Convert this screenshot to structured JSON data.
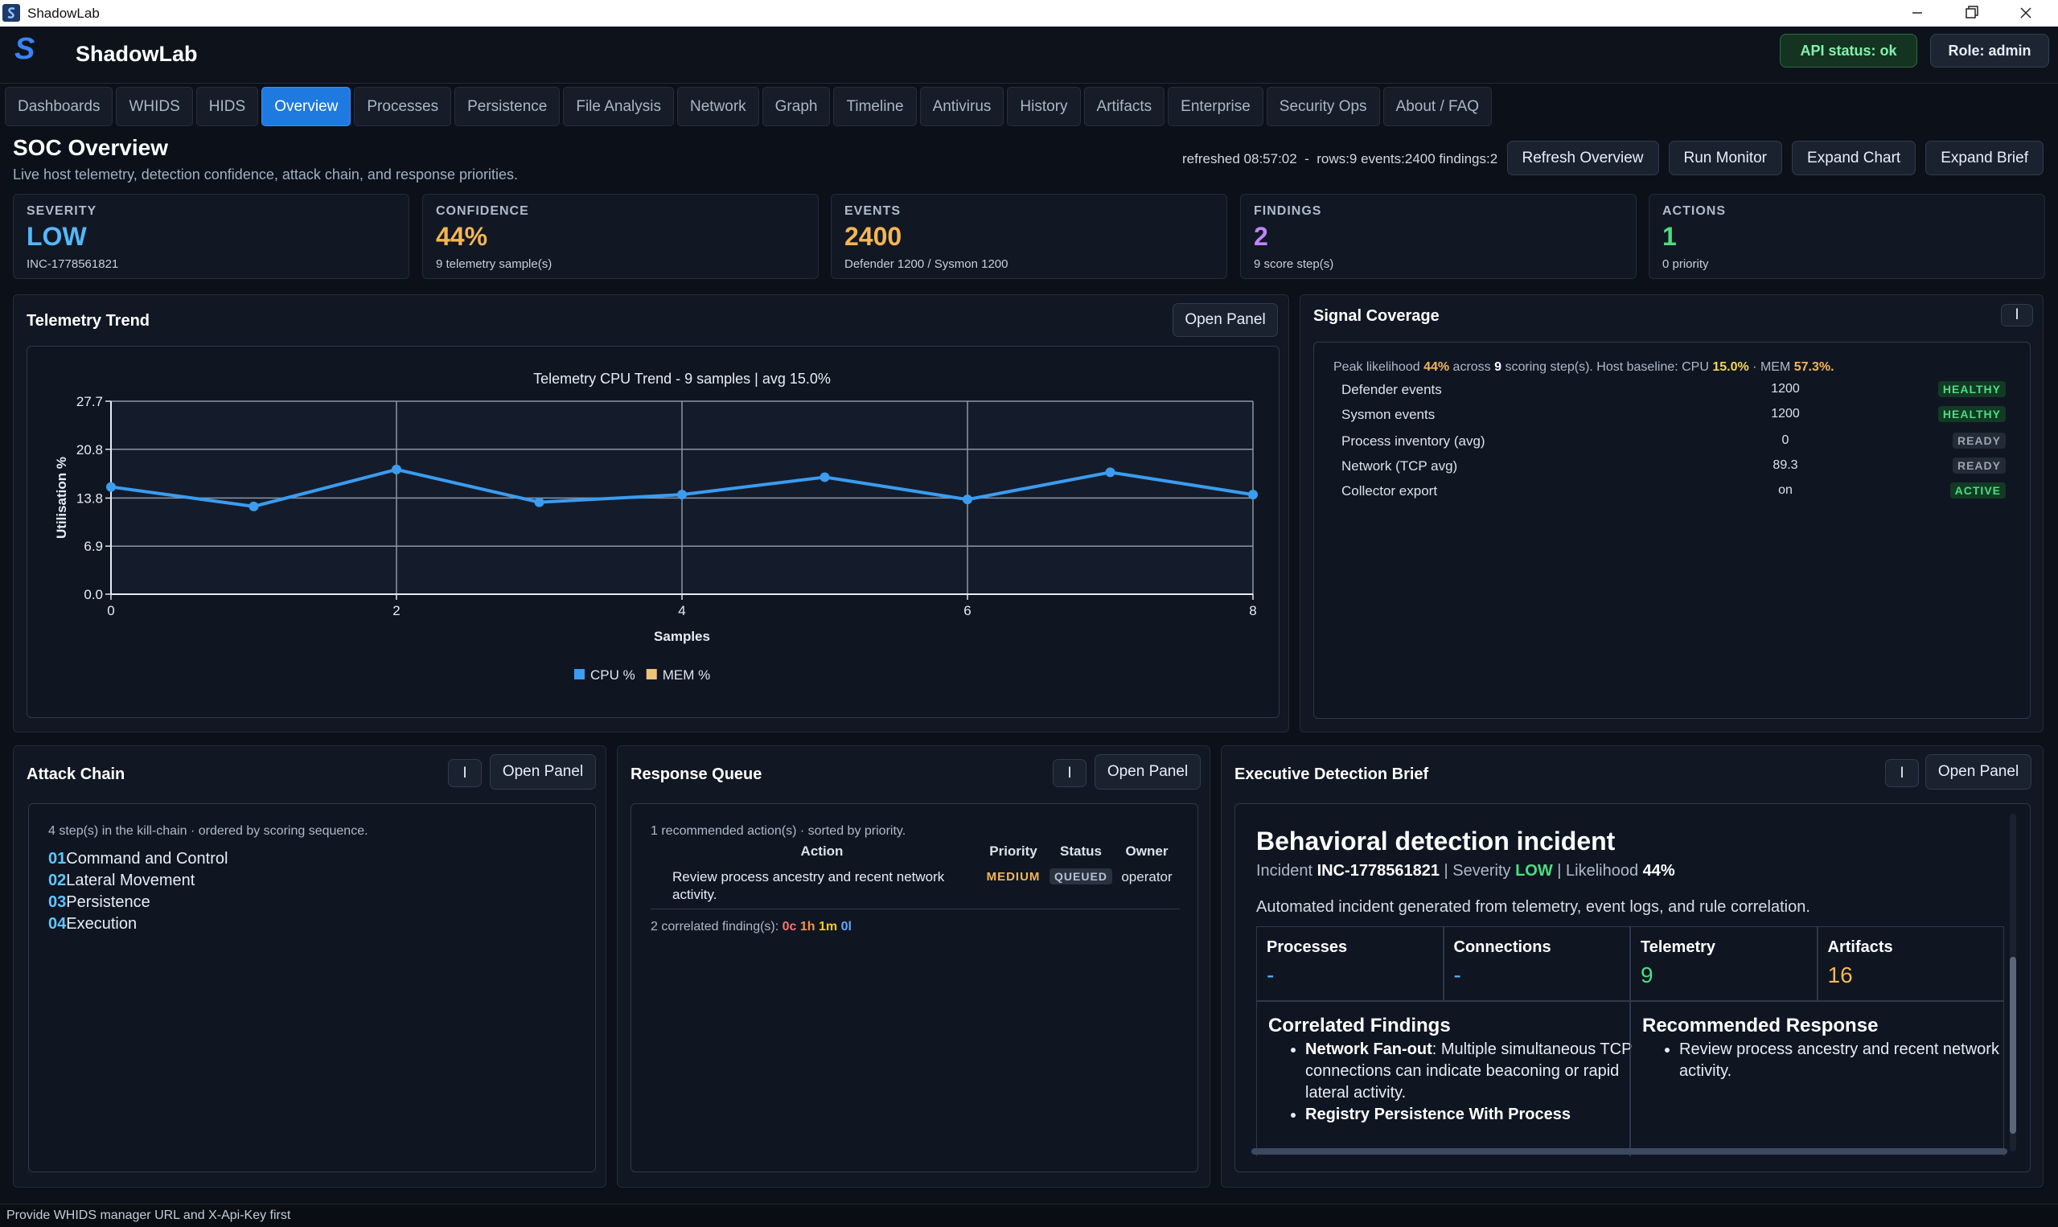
{
  "window": {
    "title": "ShadowLab"
  },
  "header": {
    "logo": "S",
    "app_name": "ShadowLab",
    "api_status": "API status: ok",
    "role": "Role: admin"
  },
  "tabs": [
    {
      "label": "Dashboards"
    },
    {
      "label": "WHIDS"
    },
    {
      "label": "HIDS"
    },
    {
      "label": "Overview",
      "active": true
    },
    {
      "label": "Processes"
    },
    {
      "label": "Persistence"
    },
    {
      "label": "File Analysis"
    },
    {
      "label": "Network"
    },
    {
      "label": "Graph"
    },
    {
      "label": "Timeline"
    },
    {
      "label": "Antivirus"
    },
    {
      "label": "History"
    },
    {
      "label": "Artifacts"
    },
    {
      "label": "Enterprise"
    },
    {
      "label": "Security Ops"
    },
    {
      "label": "About / FAQ"
    }
  ],
  "page": {
    "title": "SOC Overview",
    "subtitle": "Live host telemetry, detection confidence, attack chain, and response priorities.",
    "status_line": "refreshed 08:57:02  -  rows:9 events:2400 findings:2",
    "buttons": [
      "Refresh Overview",
      "Run Monitor",
      "Expand Chart",
      "Expand Brief"
    ]
  },
  "kpis": [
    {
      "label": "SEVERITY",
      "value": "LOW",
      "sub": "INC-1778561821",
      "color": "#55b8ff"
    },
    {
      "label": "CONFIDENCE",
      "value": "44%",
      "sub": "9 telemetry sample(s)",
      "color": "#f5b553"
    },
    {
      "label": "EVENTS",
      "value": "2400",
      "sub": "Defender 1200 / Sysmon 1200",
      "color": "#f5b553"
    },
    {
      "label": "FINDINGS",
      "value": "2",
      "sub": "9 score step(s)",
      "color": "#c084fc"
    },
    {
      "label": "ACTIONS",
      "value": "1",
      "sub": "0 priority",
      "color": "#4ade80"
    }
  ],
  "telemetry_panel": {
    "title": "Telemetry Trend",
    "button": "Open Panel"
  },
  "chart_data": {
    "type": "line",
    "title": "Telemetry CPU Trend - 9 samples | avg 15.0%",
    "x_label": "Samples",
    "y_label": "Utilisation %",
    "x": [
      0,
      1,
      2,
      3,
      4,
      5,
      6,
      7,
      8
    ],
    "series": [
      {
        "name": "CPU %",
        "color": "#3b9cf0",
        "values": [
          15.4,
          12.6,
          17.9,
          13.2,
          14.3,
          16.8,
          13.6,
          17.5,
          14.3
        ]
      },
      {
        "name": "MEM %",
        "color": "#f0c27a",
        "values": [
          null,
          null,
          null,
          null,
          null,
          null,
          null,
          null,
          null
        ]
      }
    ],
    "xlim": [
      0,
      8
    ],
    "xticks": [
      0,
      2,
      4,
      6,
      8
    ],
    "ylim": [
      0,
      27.7
    ],
    "yticks": [
      {
        "value": 0,
        "label": "0.0"
      },
      {
        "value": 6.9,
        "label": "6.9"
      },
      {
        "value": 13.8,
        "label": "13.8"
      },
      {
        "value": 20.8,
        "label": "20.8"
      },
      27.7
    ],
    "grid": true,
    "legend": "bottom"
  },
  "signal_coverage": {
    "title": "Signal Coverage",
    "icon_button": "I",
    "summary": [
      {
        "text": "Peak likelihood "
      },
      {
        "text": "44%",
        "color": "#f5b553"
      },
      {
        "text": " across "
      },
      {
        "text": "9",
        "color": "#ffffff"
      },
      {
        "text": " scoring step(s). Host baseline: CPU "
      },
      {
        "text": "15.0%",
        "color": "#f5d553"
      },
      {
        "text": " · MEM "
      },
      {
        "text": "57.3%.",
        "color": "#f5b553"
      }
    ],
    "rows": [
      {
        "name": "Defender events",
        "value": "1200",
        "status": "HEALTHY",
        "tone": "ok"
      },
      {
        "name": "Sysmon events",
        "value": "1200",
        "status": "HEALTHY",
        "tone": "ok"
      },
      {
        "name": "Process inventory (avg)",
        "value": "0",
        "status": "READY",
        "tone": "neutral"
      },
      {
        "name": "Network (TCP avg)",
        "value": "89.3",
        "status": "READY",
        "tone": "neutral"
      },
      {
        "name": "Collector export",
        "value": "on",
        "status": "ACTIVE",
        "tone": "ok"
      }
    ]
  },
  "attack_chain": {
    "title": "Attack Chain",
    "icon_button": "I",
    "button": "Open Panel",
    "summary": "4 step(s) in the kill-chain · ordered by scoring sequence.",
    "steps": [
      {
        "num": "01",
        "name": "Command and Control"
      },
      {
        "num": "02",
        "name": "Lateral Movement"
      },
      {
        "num": "03",
        "name": "Persistence"
      },
      {
        "num": "04",
        "name": "Execution"
      }
    ]
  },
  "response_queue": {
    "title": "Response Queue",
    "icon_button": "I",
    "button": "Open Panel",
    "summary": "1 recommended action(s) · sorted by priority.",
    "columns": [
      "Action",
      "Priority",
      "Status",
      "Owner"
    ],
    "rows": [
      [
        "Review process ancestry and recent network activity.",
        "MEDIUM",
        "QUEUED",
        "operator"
      ]
    ],
    "footer": [
      {
        "text": "2 correlated finding(s): "
      },
      {
        "text": "0c",
        "color": "#f87171"
      },
      {
        "text": " "
      },
      {
        "text": "1h",
        "color": "#fb923c"
      },
      {
        "text": " "
      },
      {
        "text": "1m",
        "color": "#facc15"
      },
      {
        "text": " "
      },
      {
        "text": "0l",
        "color": "#60a5fa"
      }
    ]
  },
  "brief": {
    "title": "Executive Detection Brief",
    "icon_button": "I",
    "button": "Open Panel",
    "heading": "Behavioral detection incident",
    "meta": [
      {
        "text": "Incident "
      },
      {
        "text": "INC-1778561821",
        "color": "#ffffff",
        "bold": true
      },
      {
        "text": " | Severity "
      },
      {
        "text": "LOW",
        "color": "#4ade80",
        "bold": true
      },
      {
        "text": " | Likelihood "
      },
      {
        "text": "44%",
        "color": "#ffffff",
        "bold": true
      }
    ],
    "description": "Automated incident generated from telemetry, event logs, and rule correlation.",
    "stats": [
      {
        "label": "Processes",
        "value": "-",
        "color": "#55b8ff"
      },
      {
        "label": "Connections",
        "value": "-",
        "color": "#55b8ff"
      },
      {
        "label": "Telemetry",
        "value": "9",
        "color": "#4ade80"
      },
      {
        "label": "Artifacts",
        "value": "16",
        "color": "#f5b553"
      }
    ],
    "findings_title": "Correlated Findings",
    "findings": [
      {
        "name": "Network Fan-out",
        "text": ": Multiple simultaneous TCP connections can indicate beaconing or rapid lateral activity."
      },
      {
        "name": "Registry Persistence With Process"
      }
    ],
    "response_title": "Recommended Response",
    "responses": [
      "Review process ancestry and recent network activity."
    ]
  },
  "status_bar": "Provide WHIDS manager URL and X-Api-Key first"
}
